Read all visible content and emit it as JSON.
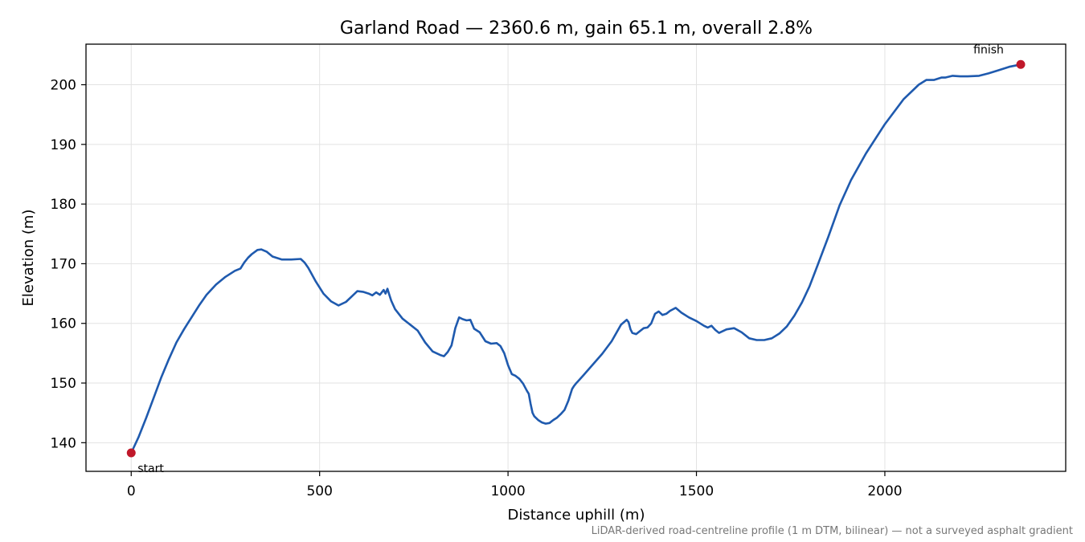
{
  "chart_data": {
    "type": "line",
    "title": "Garland Road — 2360.6 m, gain 65.1 m, overall 2.8%",
    "xlabel": "Distance uphill (m)",
    "ylabel": "Elevation (m)",
    "footnote": "LiDAR-derived road-centreline profile (1 m DTM, bilinear) — not a surveyed asphalt gradient",
    "xlim": [
      -120,
      2480
    ],
    "ylim": [
      135.2,
      206.8
    ],
    "xticks": [
      0,
      500,
      1000,
      1500,
      2000
    ],
    "yticks": [
      140,
      150,
      160,
      170,
      180,
      190,
      200
    ],
    "grid": true,
    "line_color": "#1f5aae",
    "marker_color": "#c0182a",
    "annotations": [
      {
        "label": "start",
        "x": 0,
        "y": 138.3
      },
      {
        "label": "finish",
        "x": 2360.6,
        "y": 203.4
      }
    ],
    "series": [
      {
        "x": [
          0,
          20,
          40,
          60,
          80,
          100,
          120,
          140,
          150,
          160,
          180,
          200,
          225,
          250,
          275,
          290,
          300,
          310,
          320,
          335,
          345,
          360,
          375,
          400,
          425,
          450,
          460,
          470,
          490,
          510,
          530,
          550,
          570,
          590,
          600,
          615,
          630,
          640,
          650,
          660,
          670,
          675,
          680,
          685,
          690,
          700,
          720,
          740,
          760,
          780,
          800,
          820,
          830,
          840,
          850,
          860,
          870,
          880,
          890,
          900,
          910,
          925,
          940,
          955,
          970,
          980,
          990,
          1000,
          1010,
          1020,
          1030,
          1040,
          1050,
          1055,
          1060,
          1065,
          1070,
          1080,
          1090,
          1100,
          1110,
          1120,
          1130,
          1140,
          1150,
          1160,
          1170,
          1175,
          1180,
          1190,
          1200,
          1225,
          1250,
          1275,
          1300,
          1315,
          1320,
          1325,
          1330,
          1340,
          1350,
          1360,
          1370,
          1380,
          1390,
          1400,
          1410,
          1420,
          1430,
          1445,
          1460,
          1480,
          1500,
          1520,
          1530,
          1540,
          1550,
          1560,
          1580,
          1600,
          1620,
          1640,
          1660,
          1680,
          1700,
          1720,
          1740,
          1760,
          1780,
          1800,
          1820,
          1850,
          1880,
          1910,
          1950,
          2000,
          2050,
          2090,
          2110,
          2130,
          2140,
          2150,
          2160,
          2180,
          2200,
          2220,
          2250,
          2275,
          2300,
          2330,
          2360.6
        ],
        "y": [
          138.3,
          141.0,
          144.2,
          147.6,
          151.0,
          154.0,
          156.8,
          159.0,
          160.0,
          161.0,
          163.0,
          164.8,
          166.5,
          167.8,
          168.8,
          169.2,
          170.2,
          171.0,
          171.6,
          172.3,
          172.4,
          172.0,
          171.2,
          170.7,
          170.7,
          170.8,
          170.2,
          169.3,
          167.0,
          165.0,
          163.7,
          163.0,
          163.6,
          164.8,
          165.4,
          165.3,
          165.0,
          164.7,
          165.2,
          164.8,
          165.6,
          165.0,
          165.8,
          164.8,
          163.8,
          162.4,
          160.8,
          159.8,
          158.8,
          156.8,
          155.3,
          154.7,
          154.5,
          155.2,
          156.3,
          159.2,
          161.0,
          160.7,
          160.5,
          160.6,
          159.1,
          158.5,
          157.0,
          156.6,
          156.7,
          156.2,
          155.0,
          153.0,
          151.5,
          151.2,
          150.7,
          149.9,
          148.7,
          148.2,
          146.5,
          145.0,
          144.4,
          143.8,
          143.4,
          143.2,
          143.3,
          143.8,
          144.2,
          144.8,
          145.5,
          147.0,
          149.0,
          149.5,
          149.9,
          150.6,
          151.3,
          153.1,
          154.9,
          157.0,
          159.8,
          160.6,
          160.2,
          159.0,
          158.4,
          158.2,
          158.7,
          159.2,
          159.3,
          160.0,
          161.6,
          162.0,
          161.4,
          161.6,
          162.1,
          162.6,
          161.8,
          161.0,
          160.4,
          159.6,
          159.3,
          159.6,
          158.9,
          158.4,
          159.0,
          159.2,
          158.5,
          157.5,
          157.2,
          157.2,
          157.5,
          158.3,
          159.5,
          161.3,
          163.5,
          166.2,
          169.5,
          174.5,
          179.8,
          184.0,
          188.5,
          193.4,
          197.6,
          200.0,
          200.8,
          200.8,
          201.0,
          201.2,
          201.2,
          201.5,
          201.4,
          201.4,
          201.5,
          201.9,
          202.4,
          203.0,
          203.4
        ]
      }
    ]
  }
}
